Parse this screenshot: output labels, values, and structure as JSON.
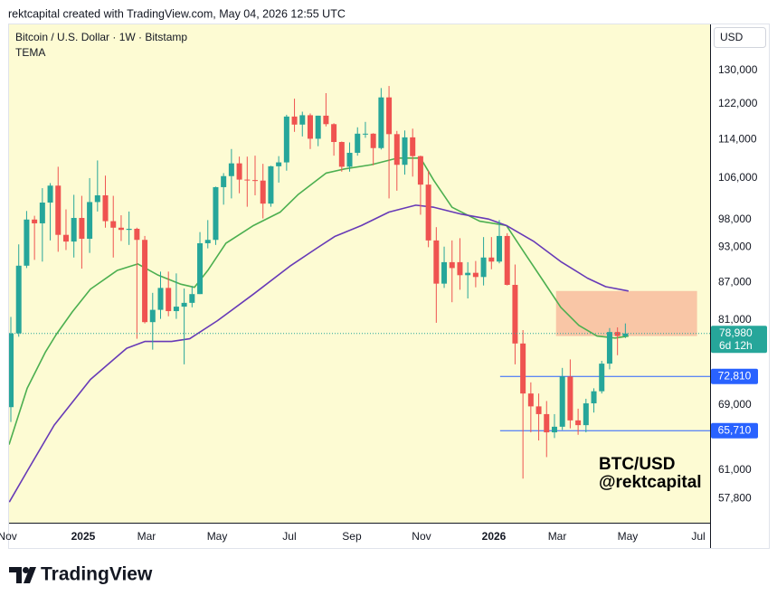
{
  "header": "rektcapital created with TradingView.com, May 04, 2026 12:55 UTC",
  "footer": {
    "brand": "TradingView"
  },
  "chart_data": {
    "type": "candlestick",
    "title": "Bitcoin / U.S. Dollar · 1W · Bitstamp",
    "subtitle": "TEMA",
    "currency": "USD",
    "log_scale": true,
    "grid": false,
    "up_color": "#26a69a",
    "down_color": "#ef5350",
    "ylim": [
      55200,
      141800
    ],
    "yticks": [
      {
        "value": 130000,
        "label": "130,000"
      },
      {
        "value": 122000,
        "label": "122,000"
      },
      {
        "value": 114000,
        "label": "114,000"
      },
      {
        "value": 106000,
        "label": "106,000"
      },
      {
        "value": 98000,
        "label": "98,000"
      },
      {
        "value": 93000,
        "label": "93,000"
      },
      {
        "value": 87000,
        "label": "87,000"
      },
      {
        "value": 81000,
        "label": "81,000"
      },
      {
        "value": 69000,
        "label": "69,000"
      },
      {
        "value": 61000,
        "label": "61,000"
      },
      {
        "value": 57800,
        "label": "57,800"
      }
    ],
    "xlim": [
      -0.23,
      88.75
    ],
    "xticks": [
      {
        "value": -0.45,
        "label": "Nov"
      },
      {
        "value": 9.18,
        "label": "2025"
      },
      {
        "value": 17.22,
        "label": "Mar"
      },
      {
        "value": 26.18,
        "label": "May"
      },
      {
        "value": 35.36,
        "label": "Jul"
      },
      {
        "value": 43.28,
        "label": "Sep"
      },
      {
        "value": 52.12,
        "label": "Nov"
      },
      {
        "value": 61.31,
        "label": "2026"
      },
      {
        "value": 69.35,
        "label": "Mar"
      },
      {
        "value": 78.3,
        "label": "May"
      },
      {
        "value": 87.26,
        "label": "Jul"
      }
    ],
    "open": [
      68700,
      79000,
      89800,
      98000,
      97300,
      101200,
      104500,
      95200,
      94000,
      98300,
      94500,
      101300,
      102600,
      97700,
      96500,
      96100,
      96300,
      94300,
      80700,
      82600,
      86100,
      82400,
      83100,
      83700,
      85100,
      93700,
      94300,
      104200,
      106400,
      109000,
      105700,
      105600,
      105500,
      101000,
      108400,
      109200,
      119100,
      117300,
      119400,
      114200,
      119300,
      117400,
      113500,
      108300,
      111200,
      115300,
      115300,
      112200,
      123500,
      115200,
      108700,
      114500,
      110500,
      104700,
      94200,
      86800,
      90400,
      90400,
      88200,
      88600,
      87900,
      91200,
      90500,
      95000,
      86600,
      77500,
      70500,
      68800,
      67800,
      65500,
      66200,
      72800,
      67000,
      66400,
      69200,
      70800,
      74600,
      79200,
      78600
    ],
    "high": [
      81500,
      93500,
      99600,
      98700,
      104000,
      105000,
      108300,
      99900,
      102700,
      102500,
      106000,
      109600,
      106500,
      102500,
      98800,
      99500,
      96500,
      95000,
      85300,
      88800,
      88800,
      88500,
      86000,
      86400,
      95700,
      97900,
      104300,
      107000,
      112000,
      110400,
      110400,
      110600,
      108900,
      108500,
      110500,
      119500,
      123200,
      120200,
      119800,
      119300,
      124500,
      117600,
      113600,
      113400,
      116700,
      117900,
      115400,
      125700,
      126200,
      115900,
      116000,
      116400,
      110600,
      107500,
      96600,
      93100,
      94200,
      94600,
      90400,
      90600,
      94800,
      94800,
      97900,
      95500,
      90000,
      79500,
      72000,
      70500,
      69500,
      67800,
      74000,
      75200,
      68500,
      69800,
      71200,
      75000,
      79800,
      79900,
      80500
    ],
    "low": [
      66800,
      78500,
      89400,
      90800,
      90500,
      94200,
      92200,
      92500,
      91200,
      89300,
      92000,
      99500,
      96500,
      91200,
      94100,
      93400,
      78200,
      80500,
      76600,
      81200,
      81600,
      81200,
      74500,
      83000,
      85100,
      92800,
      93400,
      100800,
      102000,
      103000,
      100400,
      102600,
      98200,
      100400,
      105100,
      107500,
      115700,
      114700,
      112000,
      112600,
      116900,
      110600,
      107300,
      107300,
      110600,
      114400,
      108600,
      111900,
      102000,
      103500,
      106700,
      106300,
      98900,
      93000,
      80600,
      86100,
      83800,
      85800,
      84400,
      86200,
      86500,
      89200,
      90200,
      86500,
      74500,
      60000,
      65500,
      64500,
      62500,
      64800,
      65800,
      66000,
      65200,
      65500,
      68000,
      70500,
      73800,
      75800,
      78300
    ],
    "close": [
      79000,
      89800,
      98000,
      97300,
      101200,
      104500,
      95200,
      94000,
      98300,
      94500,
      101300,
      102600,
      97700,
      96500,
      96100,
      96300,
      94300,
      80700,
      82600,
      86100,
      82400,
      83100,
      83700,
      85100,
      93700,
      94300,
      104200,
      106400,
      109000,
      105700,
      105600,
      105500,
      101000,
      108400,
      109200,
      119100,
      117300,
      119400,
      114200,
      119300,
      117400,
      113500,
      108300,
      111200,
      115300,
      115300,
      112200,
      123500,
      115200,
      108700,
      114500,
      110500,
      104700,
      94200,
      86800,
      90400,
      89400,
      88200,
      88600,
      87900,
      91200,
      90500,
      95000,
      86600,
      77500,
      70500,
      68800,
      67800,
      65500,
      66200,
      72800,
      67000,
      66400,
      69200,
      70800,
      74600,
      79200,
      78600,
      78980
    ],
    "lines": [
      {
        "color": "#4caf50",
        "x": [
          -0.23,
          2.07,
          4.36,
          5.74,
          7.81,
          10.1,
          13.5,
          16.1,
          18.7,
          21.6,
          23.3,
          25.0,
          27.3,
          30.8,
          34.2,
          36.5,
          40.0,
          42.2,
          45.7,
          49.1,
          52.0,
          53.7,
          56.0,
          59.5,
          62.9,
          65.2,
          67.5,
          69.8,
          72.1,
          74.4,
          76.7,
          78.4
        ],
        "values": [
          64000,
          71200,
          76200,
          78800,
          82300,
          85900,
          89000,
          90100,
          88200,
          86700,
          86200,
          89000,
          93700,
          96900,
          99400,
          102800,
          107000,
          107800,
          108700,
          110100,
          110100,
          105500,
          100300,
          97700,
          96900,
          92000,
          87400,
          83000,
          80200,
          78600,
          78300,
          78600
        ]
      },
      {
        "color": "#673ab7",
        "x": [
          -0.2,
          2.1,
          5.5,
          10.1,
          14.7,
          17.0,
          20.4,
          22.7,
          26.2,
          30.8,
          35.4,
          38.8,
          41.1,
          44.5,
          48.0,
          51.4,
          53.7,
          57.2,
          60.6,
          62.9,
          66.4,
          69.8,
          73.2,
          75.5,
          78.4
        ],
        "values": [
          57400,
          60900,
          66400,
          72400,
          76800,
          77800,
          77800,
          78200,
          80900,
          85100,
          89700,
          92800,
          94900,
          96900,
          99400,
          100700,
          100300,
          99000,
          98100,
          96900,
          94000,
          90500,
          87700,
          86300,
          85600
        ]
      }
    ],
    "zone": {
      "color": "#f9c6a6",
      "x": [
        69.2,
        87.1
      ],
      "y": [
        78600,
        85600
      ]
    },
    "levels": [
      {
        "value": 72810,
        "label": "72,810",
        "color": "#2962ff",
        "start": 62.1
      },
      {
        "value": 65710,
        "label": "65,710",
        "color": "#2962ff",
        "start": 62.1
      }
    ],
    "last_price": {
      "value": 78980,
      "label": "78,980",
      "countdown": "6d 12h",
      "color": "#26a69a"
    },
    "annotation": [
      "BTC/USD",
      "@rektcapital"
    ]
  }
}
